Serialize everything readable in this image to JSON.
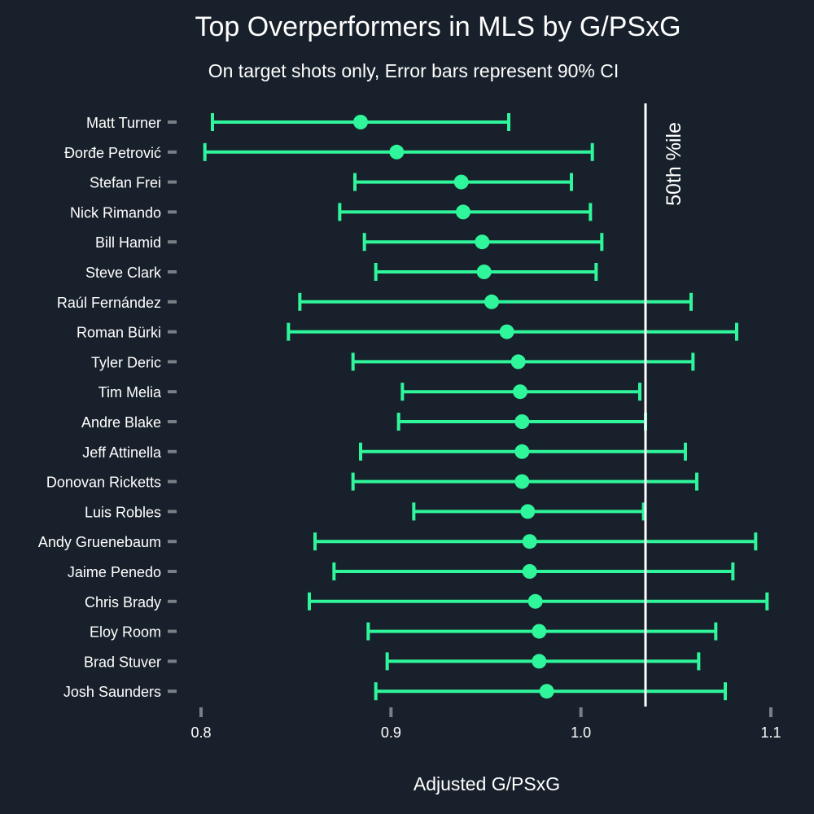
{
  "chart_data": {
    "type": "scatter",
    "title": "Top Overperformers in MLS by G/PSxG",
    "subtitle": "On target shots only, Error bars represent 90% CI",
    "xlabel": "Adjusted G/PSxG",
    "ylabel": "",
    "xlim": [
      0.8,
      1.1
    ],
    "xticks": [
      "0.8",
      "0.9",
      "1.0",
      "1.1"
    ],
    "grid": false,
    "reference_line": {
      "value": 1.034,
      "label": "50th %ile"
    },
    "series": [
      {
        "points": [
          {
            "player": "Matt Turner",
            "value": 0.884,
            "lower": 0.806,
            "upper": 0.962
          },
          {
            "player": "Đorđe Petrović",
            "value": 0.903,
            "lower": 0.802,
            "upper": 1.006
          },
          {
            "player": "Stefan Frei",
            "value": 0.937,
            "lower": 0.881,
            "upper": 0.995
          },
          {
            "player": "Nick Rimando",
            "value": 0.938,
            "lower": 0.873,
            "upper": 1.005
          },
          {
            "player": "Bill Hamid",
            "value": 0.948,
            "lower": 0.886,
            "upper": 1.011
          },
          {
            "player": "Steve Clark",
            "value": 0.949,
            "lower": 0.892,
            "upper": 1.008
          },
          {
            "player": "Raúl Fernández",
            "value": 0.953,
            "lower": 0.852,
            "upper": 1.058
          },
          {
            "player": "Roman Bürki",
            "value": 0.961,
            "lower": 0.846,
            "upper": 1.082
          },
          {
            "player": "Tyler Deric",
            "value": 0.967,
            "lower": 0.88,
            "upper": 1.059
          },
          {
            "player": "Tim Melia",
            "value": 0.968,
            "lower": 0.906,
            "upper": 1.031
          },
          {
            "player": "Andre Blake",
            "value": 0.969,
            "lower": 0.904,
            "upper": 1.034
          },
          {
            "player": "Jeff Attinella",
            "value": 0.969,
            "lower": 0.884,
            "upper": 1.055
          },
          {
            "player": "Donovan Ricketts",
            "value": 0.969,
            "lower": 0.88,
            "upper": 1.061
          },
          {
            "player": "Luis Robles",
            "value": 0.972,
            "lower": 0.912,
            "upper": 1.033
          },
          {
            "player": "Andy Gruenebaum",
            "value": 0.973,
            "lower": 0.86,
            "upper": 1.092
          },
          {
            "player": "Jaime Penedo",
            "value": 0.973,
            "lower": 0.87,
            "upper": 1.08
          },
          {
            "player": "Chris Brady",
            "value": 0.976,
            "lower": 0.857,
            "upper": 1.098
          },
          {
            "player": "Eloy Room",
            "value": 0.978,
            "lower": 0.888,
            "upper": 1.071
          },
          {
            "player": "Brad Stuver",
            "value": 0.978,
            "lower": 0.898,
            "upper": 1.062
          },
          {
            "player": "Josh Saunders",
            "value": 0.982,
            "lower": 0.892,
            "upper": 1.076
          }
        ]
      }
    ],
    "colors": {
      "background": "#18212b",
      "marker": "#2ff59b",
      "reference_line": "#ffffff",
      "text": "#ffffff",
      "axis_tick": "#7a7f85"
    }
  }
}
